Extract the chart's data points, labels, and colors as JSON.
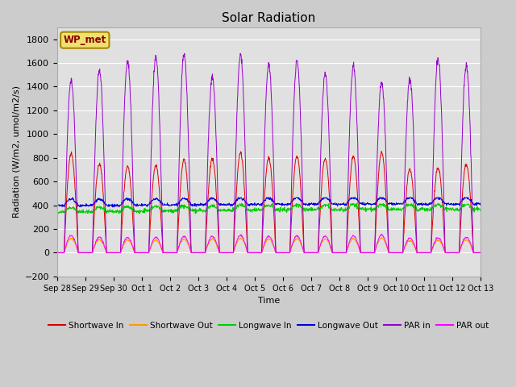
{
  "title": "Solar Radiation",
  "ylabel": "Radiation (W/m2, umol/m2/s)",
  "xlabel": "Time",
  "ylim": [
    -200,
    1900
  ],
  "yticks": [
    -200,
    0,
    200,
    400,
    600,
    800,
    1000,
    1200,
    1400,
    1600,
    1800
  ],
  "x_tick_labels": [
    "Sep 28",
    "Sep 29",
    "Sep 30",
    "Oct 1",
    "Oct 2",
    "Oct 3",
    "Oct 4",
    "Oct 5",
    "Oct 6",
    "Oct 7",
    "Oct 8",
    "Oct 9",
    "Oct 10",
    "Oct 11",
    "Oct 12",
    "Oct 13"
  ],
  "station_label": "WP_met",
  "fig_bg_color": "#cccccc",
  "plot_bg_color": "#e0e0e0",
  "series": {
    "shortwave_in": {
      "color": "#dd0000",
      "label": "Shortwave In"
    },
    "shortwave_out": {
      "color": "#ff9900",
      "label": "Shortwave Out"
    },
    "longwave_in": {
      "color": "#00cc00",
      "label": "Longwave In"
    },
    "longwave_out": {
      "color": "#0000dd",
      "label": "Longwave Out"
    },
    "par_in": {
      "color": "#9900cc",
      "label": "PAR in"
    },
    "par_out": {
      "color": "#ff00ff",
      "label": "PAR out"
    }
  },
  "num_days": 15,
  "points_per_day": 96,
  "seed": 12345
}
